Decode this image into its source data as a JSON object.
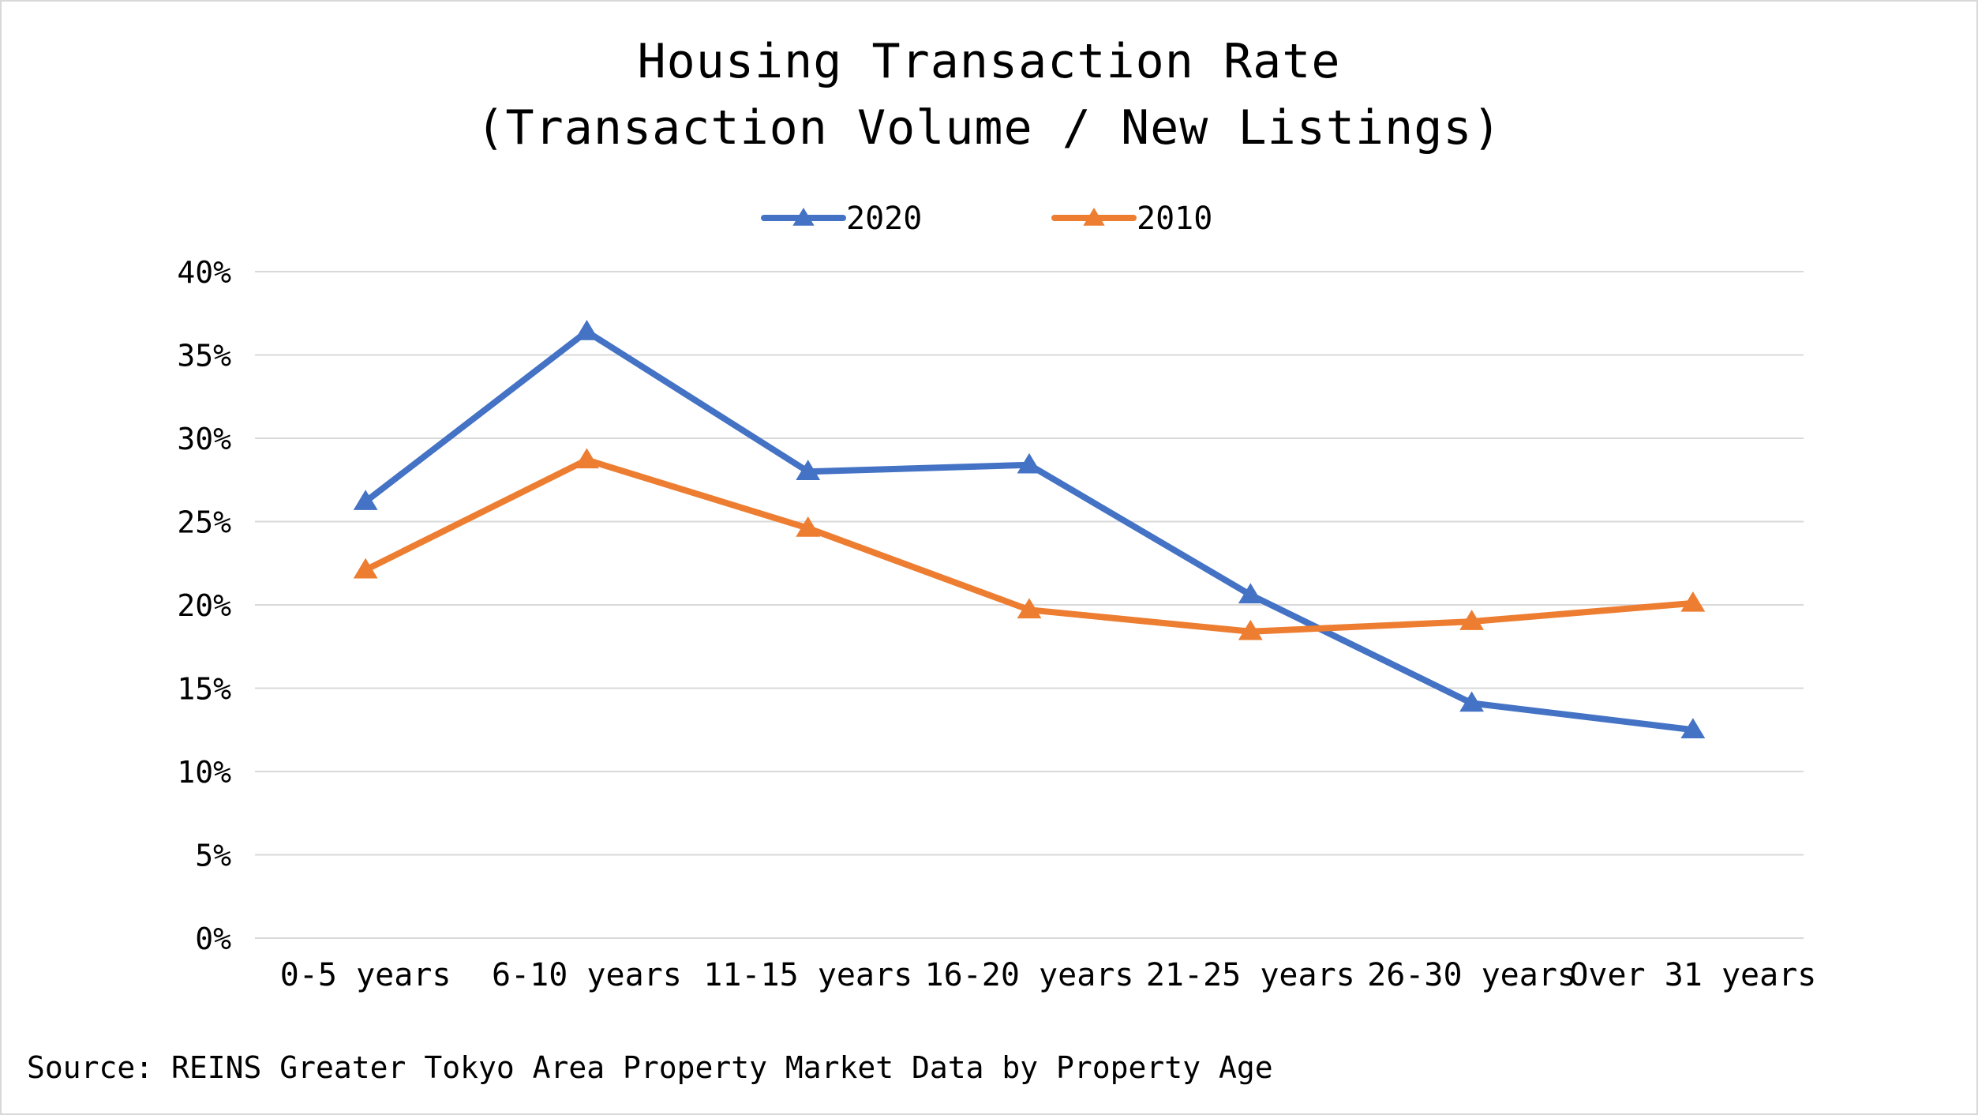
{
  "chart_data": {
    "type": "line",
    "title": "Housing Transaction Rate",
    "subtitle": "(Transaction Volume / New Listings)",
    "categories": [
      "0-5 years",
      "6-10 years",
      "11-15 years",
      "16-20 years",
      "21-25 years",
      "26-30 years",
      "Over 31 years"
    ],
    "series": [
      {
        "name": "2020",
        "color": "#4472c4",
        "marker": "triangle",
        "values": [
          26.2,
          36.4,
          28.0,
          28.4,
          20.6,
          14.1,
          12.5
        ]
      },
      {
        "name": "2010",
        "color": "#ed7d31",
        "marker": "triangle",
        "values": [
          22.1,
          28.7,
          24.6,
          19.7,
          18.4,
          19.0,
          20.1
        ]
      }
    ],
    "yticks": [
      "0%",
      "5%",
      "10%",
      "15%",
      "20%",
      "25%",
      "30%",
      "35%",
      "40%"
    ],
    "ylim": [
      0,
      40
    ],
    "ylabel": "",
    "xlabel": "",
    "grid": true,
    "legend_position": "top-center",
    "gridline_color": "#d9d9d9"
  },
  "source": "Source: REINS Greater Tokyo Area Property Market Data by Property Age"
}
